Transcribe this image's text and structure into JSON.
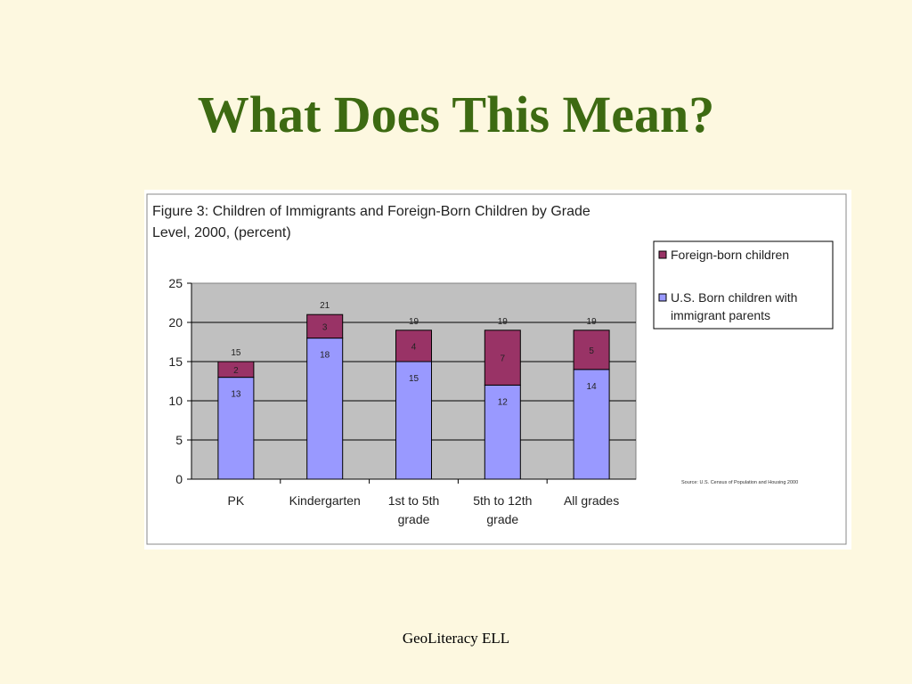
{
  "slide": {
    "title": "What Does This Mean?",
    "footer": "GeoLiteracy ELL"
  },
  "chart_data": {
    "type": "bar",
    "stacked": true,
    "title_line1": "Figure 3: Children of Immigrants and Foreign-Born Children by Grade",
    "title_line2": "Level, 2000, (percent)",
    "categories": [
      [
        "PK"
      ],
      [
        "Kindergarten"
      ],
      [
        "1st to 5th",
        "grade"
      ],
      [
        "5th to 12th",
        "grade"
      ],
      [
        "All grades"
      ]
    ],
    "series": [
      {
        "name": "U.S. Born children with immigrant parents",
        "legend_lines": [
          "U.S. Born children with",
          "immigrant parents"
        ],
        "values": [
          13,
          18,
          15,
          12,
          14
        ],
        "color": "#9999ff"
      },
      {
        "name": "Foreign-born children",
        "legend_lines": [
          "Foreign-born children"
        ],
        "values": [
          2,
          3,
          4,
          7,
          5
        ],
        "color": "#993366"
      }
    ],
    "totals": [
      15,
      21,
      19,
      19,
      19
    ],
    "ylim": [
      0,
      25
    ],
    "yticks": [
      0,
      5,
      10,
      15,
      20,
      25
    ],
    "grid": true,
    "plot_background": "#c0c0c0",
    "legend_position": "right",
    "source": "Source: U.S. Census of Population and Housing 2000"
  }
}
